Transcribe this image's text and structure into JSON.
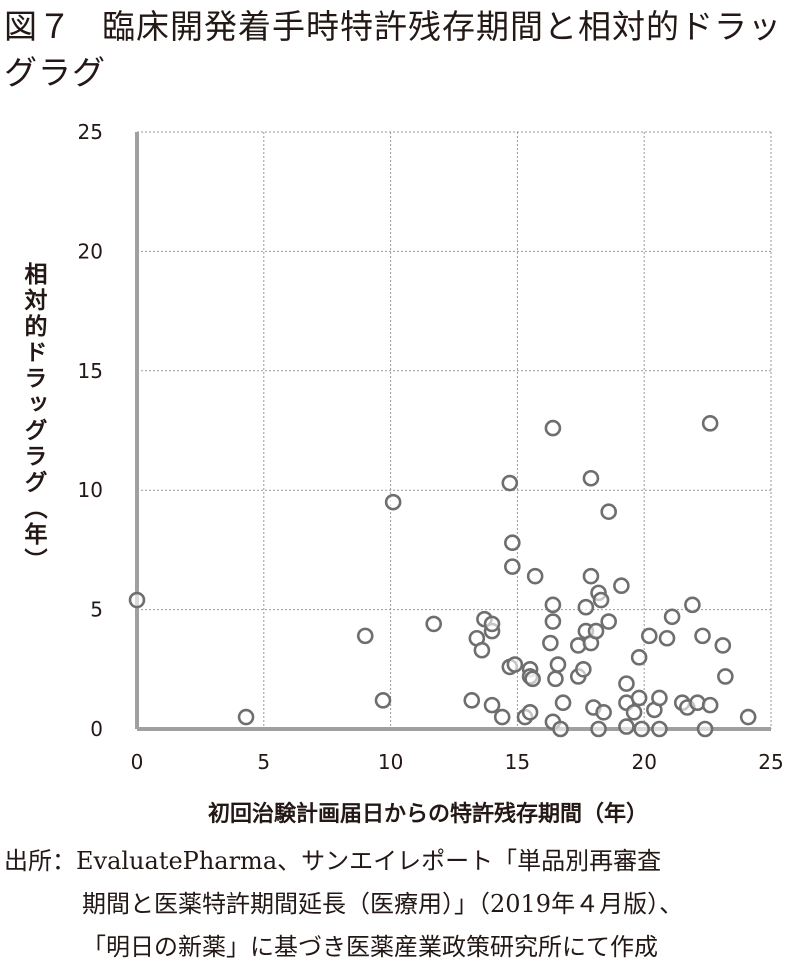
{
  "title_number": "図７",
  "title": "臨床開発着手時特許残存期間と相対的ドラッグラグ",
  "chart_data": {
    "type": "scatter",
    "title": "臨床開発着手時特許残存期間と相対的ドラッグラグ",
    "xlabel": "初回治験計画届日からの特許残存期間（年）",
    "ylabel": "相対的ドラッグラグ（年）",
    "xlim": [
      0,
      25
    ],
    "ylim": [
      0,
      25
    ],
    "xticks": [
      "0",
      "5",
      "10",
      "15",
      "20",
      "25"
    ],
    "yticks": [
      "0",
      "5",
      "10",
      "15",
      "20",
      "25"
    ],
    "grid": true,
    "marker": "open-circle",
    "marker_color": "#6e6e6e",
    "points": [
      [
        0.0,
        5.4
      ],
      [
        4.3,
        0.5
      ],
      [
        9.0,
        3.9
      ],
      [
        9.7,
        1.2
      ],
      [
        10.1,
        9.5
      ],
      [
        11.7,
        4.4
      ],
      [
        13.2,
        1.2
      ],
      [
        13.4,
        3.8
      ],
      [
        13.6,
        3.3
      ],
      [
        13.7,
        4.6
      ],
      [
        14.0,
        4.1
      ],
      [
        14.0,
        4.4
      ],
      [
        14.0,
        1.0
      ],
      [
        14.4,
        0.5
      ],
      [
        14.7,
        10.3
      ],
      [
        14.8,
        7.8
      ],
      [
        14.8,
        6.8
      ],
      [
        14.7,
        2.6
      ],
      [
        14.9,
        2.7
      ],
      [
        15.3,
        0.5
      ],
      [
        15.5,
        2.5
      ],
      [
        15.5,
        2.2
      ],
      [
        15.6,
        2.1
      ],
      [
        15.5,
        0.7
      ],
      [
        15.7,
        6.4
      ],
      [
        16.4,
        12.6
      ],
      [
        16.4,
        5.2
      ],
      [
        16.4,
        4.5
      ],
      [
        16.3,
        3.6
      ],
      [
        16.6,
        2.7
      ],
      [
        16.5,
        2.1
      ],
      [
        16.8,
        1.1
      ],
      [
        16.4,
        0.3
      ],
      [
        16.7,
        0.0
      ],
      [
        17.4,
        3.5
      ],
      [
        17.4,
        2.2
      ],
      [
        17.6,
        2.5
      ],
      [
        17.7,
        5.1
      ],
      [
        17.7,
        4.1
      ],
      [
        17.9,
        3.6
      ],
      [
        17.9,
        10.5
      ],
      [
        17.9,
        6.4
      ],
      [
        18.0,
        0.9
      ],
      [
        18.1,
        4.1
      ],
      [
        18.2,
        5.7
      ],
      [
        18.2,
        0.0
      ],
      [
        18.3,
        5.4
      ],
      [
        18.4,
        0.7
      ],
      [
        18.6,
        9.1
      ],
      [
        18.6,
        4.5
      ],
      [
        19.1,
        6.0
      ],
      [
        19.3,
        1.9
      ],
      [
        19.3,
        1.1
      ],
      [
        19.3,
        0.1
      ],
      [
        19.6,
        0.7
      ],
      [
        19.8,
        3.0
      ],
      [
        19.8,
        1.3
      ],
      [
        19.9,
        0.0
      ],
      [
        20.2,
        3.9
      ],
      [
        20.4,
        0.8
      ],
      [
        20.6,
        1.3
      ],
      [
        20.6,
        0.0
      ],
      [
        20.9,
        3.8
      ],
      [
        21.1,
        4.7
      ],
      [
        21.5,
        1.1
      ],
      [
        21.7,
        0.9
      ],
      [
        21.9,
        5.2
      ],
      [
        22.1,
        1.1
      ],
      [
        22.3,
        3.9
      ],
      [
        22.4,
        0.0
      ],
      [
        22.6,
        12.8
      ],
      [
        22.6,
        1.0
      ],
      [
        23.1,
        3.5
      ],
      [
        23.2,
        2.2
      ],
      [
        24.1,
        0.5
      ]
    ]
  },
  "source": {
    "line1": "出所：EvaluatePharma、サンエイレポート「単品別再審査",
    "line2": "期間と医薬特許期間延長（医療用）」（2019年４月版）、",
    "line3": "「明日の新薬」に基づき医薬産業政策研究所にて作成"
  }
}
